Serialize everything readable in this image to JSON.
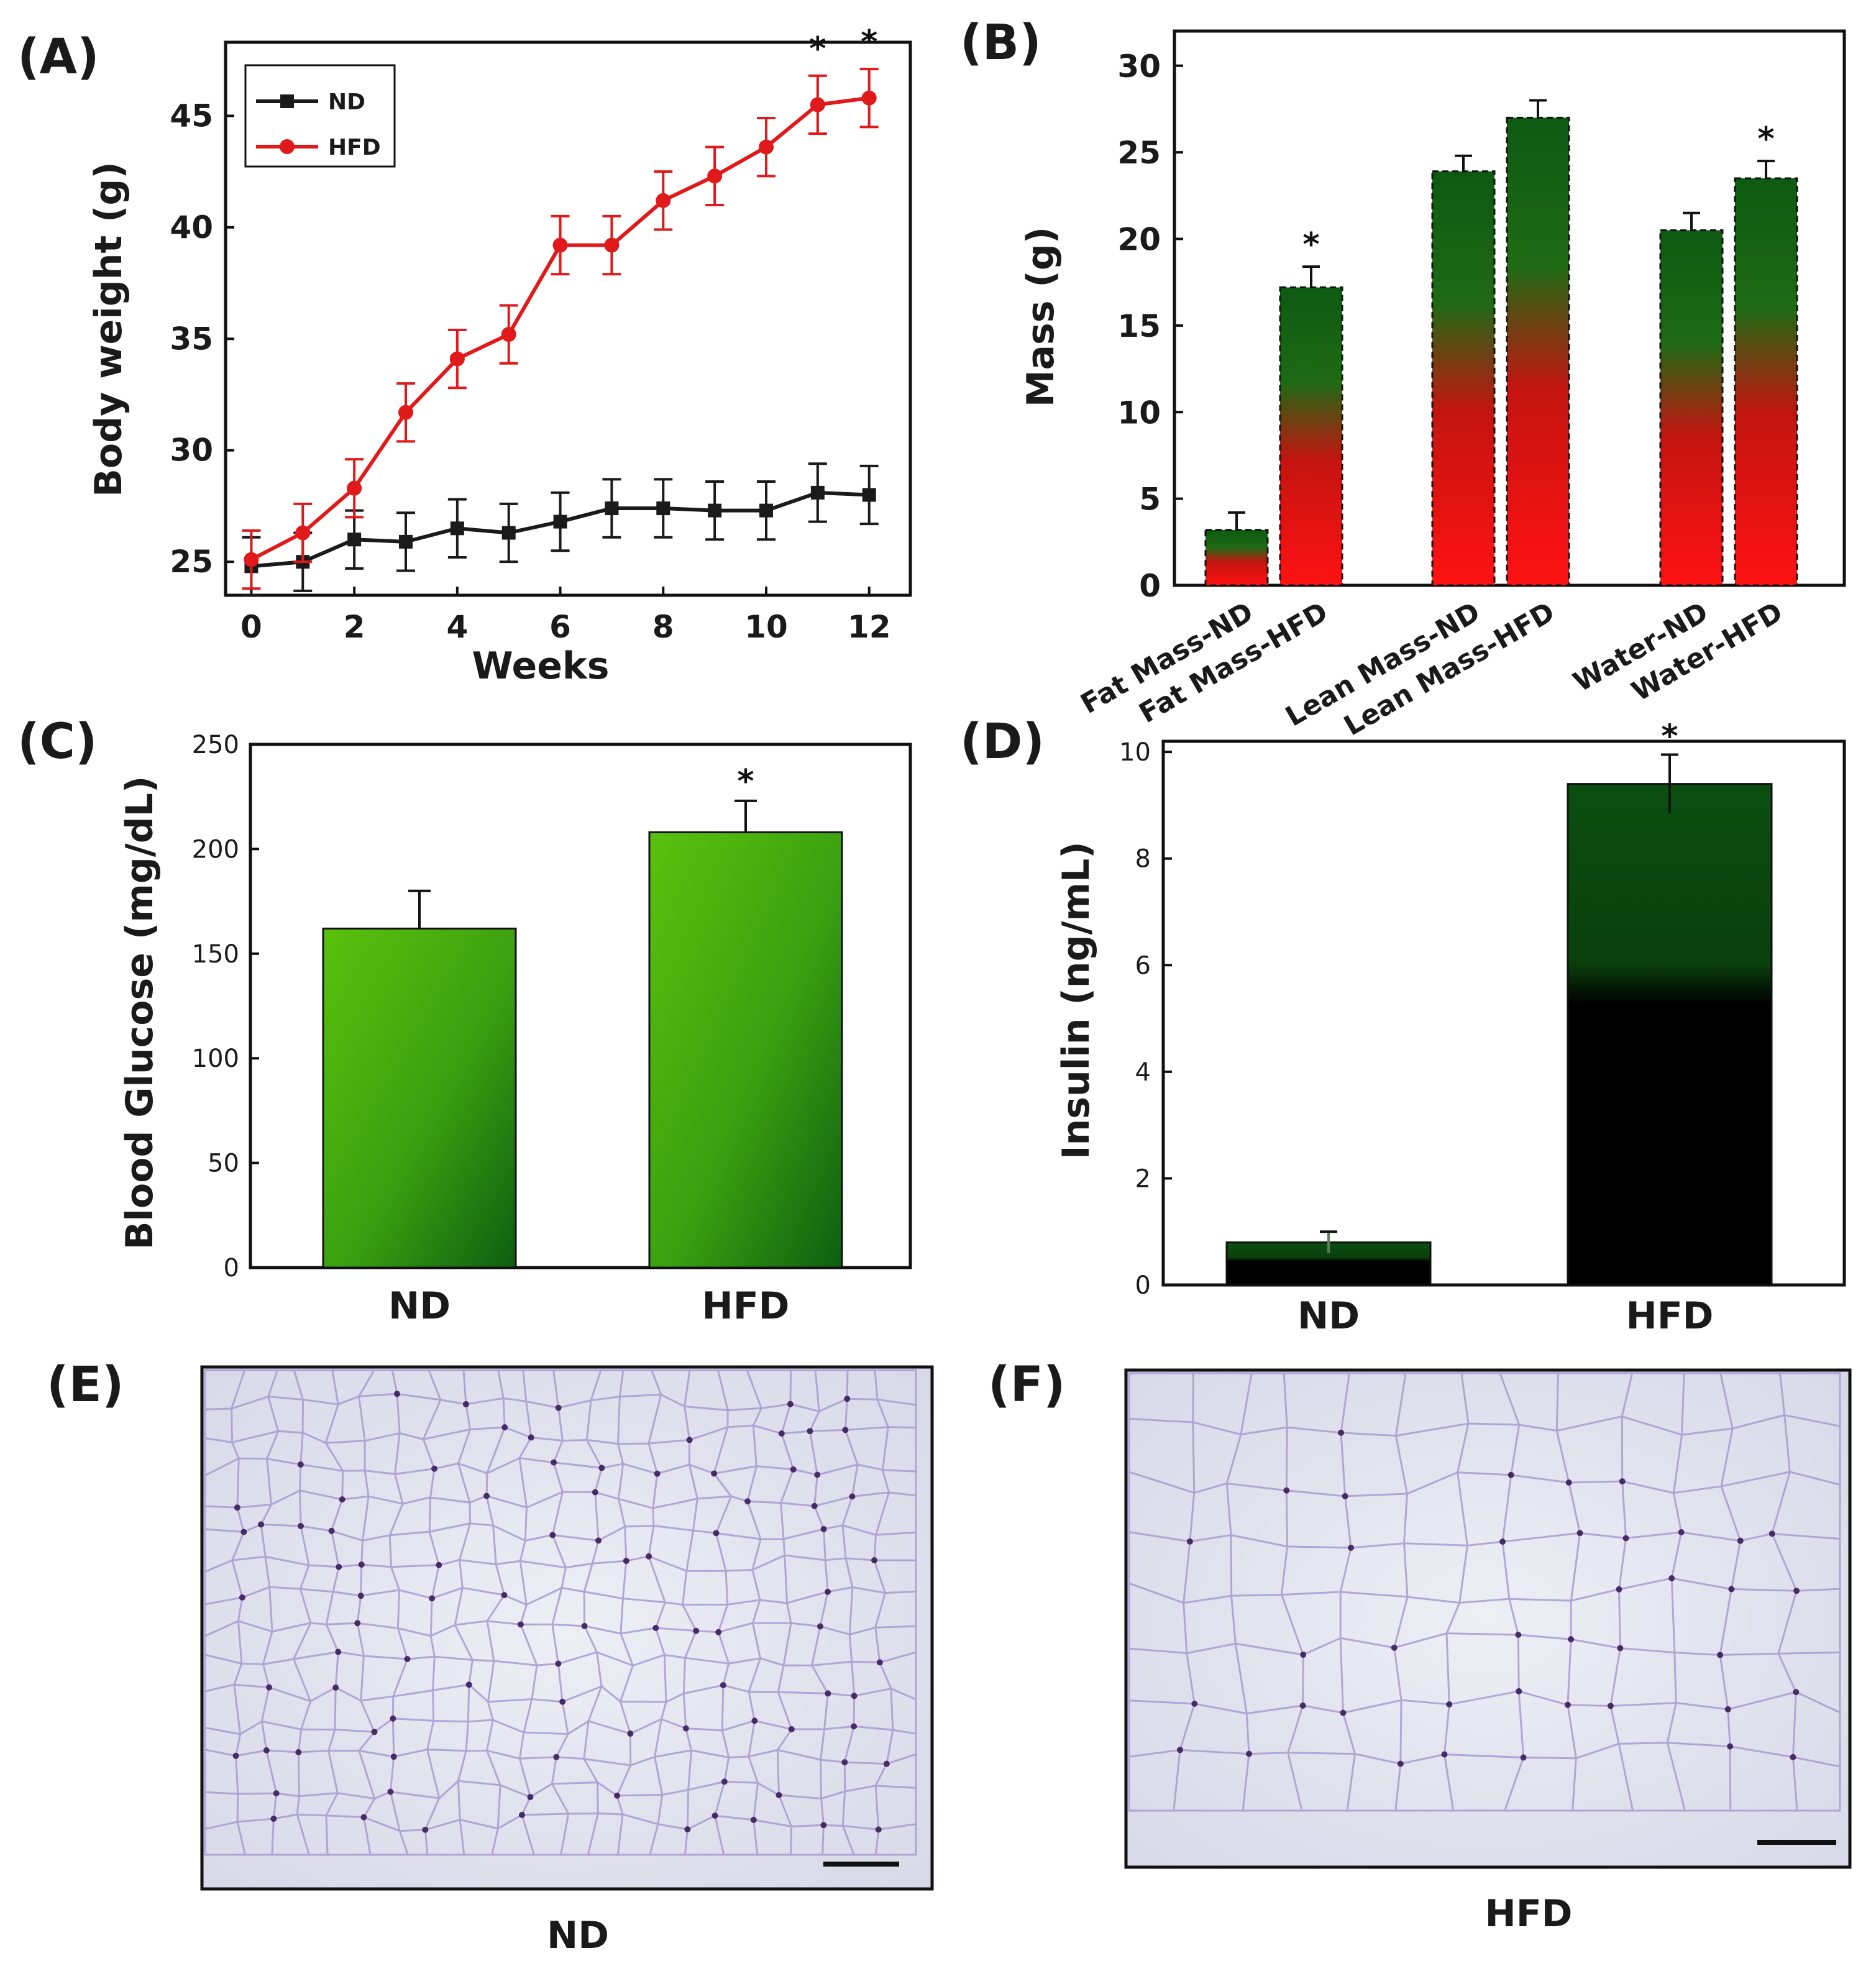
{
  "colors": {
    "nd_line": "#1a1a1a",
    "hfd_line": "#e01a1a",
    "bar_b_top": "#0d5a12",
    "bar_b_bottom": "#ff1010",
    "bar_c_light": "#5ac10c",
    "bar_c_dark": "#0d5e10",
    "bar_d_top": "#0b4f10",
    "bar_d_bottom": "#000000",
    "histo_bg": "#e3e3ef",
    "histo_cell": "#a89ad4",
    "histo_nucleus": "#3a1d5a"
  },
  "chart_data": [
    {
      "panel": "(A)",
      "type": "line",
      "title": "",
      "xlabel": "Weeks",
      "ylabel": "Body weight (g)",
      "xlim": [
        -0.5,
        12.8
      ],
      "ylim": [
        23.5,
        48.3
      ],
      "xticks": [
        "0",
        "2",
        "4",
        "6",
        "8",
        "10",
        "12"
      ],
      "yticks": [
        "25",
        "30",
        "35",
        "40",
        "45"
      ],
      "legend_position": "top-left",
      "x": [
        0,
        1,
        2,
        3,
        4,
        5,
        6,
        7,
        8,
        9,
        10,
        11,
        12
      ],
      "series": [
        {
          "name": "ND",
          "marker": "square",
          "values": [
            24.8,
            25.0,
            26.0,
            25.9,
            26.5,
            26.3,
            26.8,
            27.4,
            27.4,
            27.3,
            27.3,
            28.1,
            28.0
          ],
          "errors": [
            1.3,
            1.3,
            1.3,
            1.3,
            1.3,
            1.3,
            1.3,
            1.3,
            1.3,
            1.3,
            1.3,
            1.3,
            1.3
          ]
        },
        {
          "name": "HFD",
          "marker": "circle",
          "values": [
            25.1,
            26.3,
            28.3,
            31.7,
            34.1,
            35.2,
            39.2,
            39.2,
            41.2,
            42.3,
            43.6,
            45.5,
            45.8
          ],
          "errors": [
            1.3,
            1.3,
            1.3,
            1.3,
            1.3,
            1.3,
            1.3,
            1.3,
            1.3,
            1.3,
            1.3,
            1.3,
            1.3
          ]
        }
      ],
      "annotations": [
        {
          "text": "*",
          "x": 11
        },
        {
          "text": "*",
          "x": 12
        }
      ]
    },
    {
      "panel": "(B)",
      "type": "bar",
      "xlabel": "",
      "ylabel": "Mass (g)",
      "ylim": [
        0,
        32
      ],
      "yticks": [
        "0",
        "5",
        "10",
        "15",
        "20",
        "25",
        "30"
      ],
      "categories": [
        "Fat Mass-ND",
        "Fat Mass-HFD",
        "Lean Mass-ND",
        "Lean Mass-HFD",
        "Water-ND",
        "Water-HFD"
      ],
      "values": [
        3.2,
        17.2,
        23.9,
        27.0,
        20.5,
        23.5
      ],
      "errors": [
        1.0,
        1.2,
        0.9,
        1.0,
        1.0,
        1.0
      ],
      "significant": [
        false,
        true,
        false,
        false,
        false,
        true
      ]
    },
    {
      "panel": "(C)",
      "type": "bar",
      "xlabel": "",
      "ylabel": "Blood Glucose (mg/dL)",
      "ylim": [
        0,
        250
      ],
      "yticks": [
        "0",
        "50",
        "100",
        "150",
        "200",
        "250"
      ],
      "categories": [
        "ND",
        "HFD"
      ],
      "values": [
        162,
        208
      ],
      "errors": [
        18,
        15
      ],
      "significant": [
        false,
        true
      ]
    },
    {
      "panel": "(D)",
      "type": "bar",
      "xlabel": "",
      "ylabel": "Insulin (ng/mL)",
      "ylim": [
        0,
        10.2
      ],
      "yticks": [
        "0",
        "2",
        "4",
        "6",
        "8",
        "10"
      ],
      "categories": [
        "ND",
        "HFD"
      ],
      "values": [
        0.8,
        9.4
      ],
      "errors": [
        0.2,
        0.55
      ],
      "significant": [
        false,
        true
      ]
    }
  ],
  "panels": {
    "e": {
      "label": "(E)",
      "caption": "ND"
    },
    "f": {
      "label": "(F)",
      "caption": "HFD"
    }
  }
}
